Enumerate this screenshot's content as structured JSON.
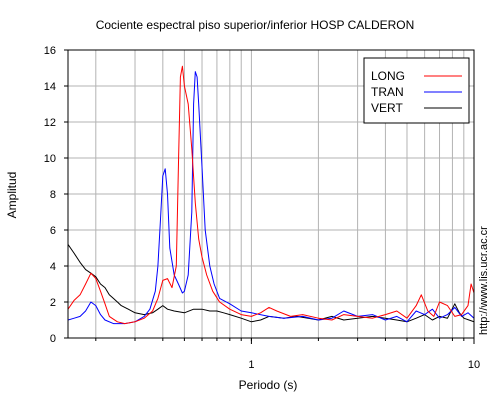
{
  "chart_data": {
    "type": "line",
    "title": "Cociente espectral piso superior/inferior  HOSP CALDERON",
    "xlabel": "Periodo (s)",
    "ylabel": "Amplitud",
    "x_scale": "log",
    "xlim": [
      0.15,
      10
    ],
    "ylim": [
      0,
      16
    ],
    "x_ticks": [
      {
        "value": 1,
        "label": "1"
      },
      {
        "value": 10,
        "label": "10"
      }
    ],
    "y_ticks": [
      0,
      2,
      4,
      6,
      8,
      10,
      12,
      14,
      16
    ],
    "grid": true,
    "legend_position": "top-right",
    "watermark": "http://www.lis.ucr.ac.cr",
    "series": [
      {
        "name": "LONG",
        "color": "#ff0000",
        "points": [
          [
            0.15,
            1.6
          ],
          [
            0.16,
            2.1
          ],
          [
            0.17,
            2.4
          ],
          [
            0.18,
            3.0
          ],
          [
            0.19,
            3.6
          ],
          [
            0.2,
            3.3
          ],
          [
            0.21,
            2.6
          ],
          [
            0.22,
            1.9
          ],
          [
            0.23,
            1.2
          ],
          [
            0.25,
            0.9
          ],
          [
            0.27,
            0.8
          ],
          [
            0.3,
            0.9
          ],
          [
            0.33,
            1.1
          ],
          [
            0.36,
            1.5
          ],
          [
            0.38,
            2.2
          ],
          [
            0.4,
            3.2
          ],
          [
            0.42,
            3.3
          ],
          [
            0.44,
            2.8
          ],
          [
            0.46,
            4.0
          ],
          [
            0.47,
            9.5
          ],
          [
            0.48,
            14.5
          ],
          [
            0.49,
            15.1
          ],
          [
            0.5,
            14.0
          ],
          [
            0.52,
            13.0
          ],
          [
            0.54,
            10.5
          ],
          [
            0.56,
            7.5
          ],
          [
            0.58,
            5.5
          ],
          [
            0.6,
            4.5
          ],
          [
            0.63,
            3.5
          ],
          [
            0.67,
            2.6
          ],
          [
            0.72,
            2.0
          ],
          [
            0.8,
            1.6
          ],
          [
            0.9,
            1.3
          ],
          [
            1.0,
            1.2
          ],
          [
            1.1,
            1.4
          ],
          [
            1.2,
            1.7
          ],
          [
            1.3,
            1.5
          ],
          [
            1.5,
            1.2
          ],
          [
            1.7,
            1.3
          ],
          [
            2.0,
            1.1
          ],
          [
            2.3,
            1.0
          ],
          [
            2.6,
            1.3
          ],
          [
            3.0,
            1.2
          ],
          [
            3.5,
            1.1
          ],
          [
            4.0,
            1.3
          ],
          [
            4.5,
            1.5
          ],
          [
            5.0,
            1.1
          ],
          [
            5.5,
            1.8
          ],
          [
            5.8,
            2.4
          ],
          [
            6.2,
            1.5
          ],
          [
            6.6,
            1.2
          ],
          [
            7.0,
            2.0
          ],
          [
            7.6,
            1.8
          ],
          [
            8.2,
            1.2
          ],
          [
            8.8,
            1.3
          ],
          [
            9.4,
            1.8
          ],
          [
            9.7,
            3.0
          ],
          [
            10.0,
            2.5
          ]
        ]
      },
      {
        "name": "TRAN",
        "color": "#0000ff",
        "points": [
          [
            0.15,
            1.0
          ],
          [
            0.16,
            1.1
          ],
          [
            0.17,
            1.2
          ],
          [
            0.18,
            1.5
          ],
          [
            0.19,
            2.0
          ],
          [
            0.2,
            1.8
          ],
          [
            0.21,
            1.3
          ],
          [
            0.22,
            1.0
          ],
          [
            0.24,
            0.8
          ],
          [
            0.27,
            0.8
          ],
          [
            0.3,
            0.9
          ],
          [
            0.33,
            1.2
          ],
          [
            0.35,
            1.6
          ],
          [
            0.37,
            2.6
          ],
          [
            0.38,
            4.0
          ],
          [
            0.39,
            6.5
          ],
          [
            0.4,
            9.0
          ],
          [
            0.41,
            9.4
          ],
          [
            0.42,
            8.0
          ],
          [
            0.43,
            5.0
          ],
          [
            0.45,
            3.5
          ],
          [
            0.47,
            3.0
          ],
          [
            0.49,
            2.5
          ],
          [
            0.5,
            2.6
          ],
          [
            0.52,
            3.5
          ],
          [
            0.54,
            7.0
          ],
          [
            0.55,
            13.0
          ],
          [
            0.56,
            14.8
          ],
          [
            0.57,
            14.5
          ],
          [
            0.58,
            13.0
          ],
          [
            0.6,
            9.5
          ],
          [
            0.62,
            6.0
          ],
          [
            0.65,
            4.0
          ],
          [
            0.68,
            3.0
          ],
          [
            0.72,
            2.2
          ],
          [
            0.8,
            1.9
          ],
          [
            0.9,
            1.5
          ],
          [
            1.0,
            1.4
          ],
          [
            1.2,
            1.2
          ],
          [
            1.4,
            1.1
          ],
          [
            1.7,
            1.2
          ],
          [
            2.0,
            1.0
          ],
          [
            2.3,
            1.1
          ],
          [
            2.6,
            1.5
          ],
          [
            3.0,
            1.2
          ],
          [
            3.5,
            1.3
          ],
          [
            4.0,
            1.0
          ],
          [
            4.5,
            1.2
          ],
          [
            5.0,
            0.9
          ],
          [
            5.5,
            1.5
          ],
          [
            6.0,
            1.3
          ],
          [
            6.5,
            1.6
          ],
          [
            7.0,
            1.1
          ],
          [
            7.6,
            1.3
          ],
          [
            8.2,
            1.7
          ],
          [
            8.8,
            1.2
          ],
          [
            9.4,
            1.4
          ],
          [
            10.0,
            1.1
          ]
        ]
      },
      {
        "name": "VERT",
        "color": "#000000",
        "points": [
          [
            0.15,
            5.2
          ],
          [
            0.16,
            4.7
          ],
          [
            0.17,
            4.2
          ],
          [
            0.18,
            3.8
          ],
          [
            0.19,
            3.6
          ],
          [
            0.2,
            3.4
          ],
          [
            0.21,
            3.0
          ],
          [
            0.22,
            2.8
          ],
          [
            0.23,
            2.4
          ],
          [
            0.24,
            2.2
          ],
          [
            0.25,
            2.0
          ],
          [
            0.26,
            1.8
          ],
          [
            0.28,
            1.6
          ],
          [
            0.3,
            1.4
          ],
          [
            0.33,
            1.3
          ],
          [
            0.36,
            1.4
          ],
          [
            0.38,
            1.6
          ],
          [
            0.4,
            1.8
          ],
          [
            0.42,
            1.6
          ],
          [
            0.45,
            1.5
          ],
          [
            0.5,
            1.4
          ],
          [
            0.55,
            1.6
          ],
          [
            0.6,
            1.6
          ],
          [
            0.65,
            1.5
          ],
          [
            0.7,
            1.5
          ],
          [
            0.75,
            1.4
          ],
          [
            0.8,
            1.3
          ],
          [
            0.9,
            1.1
          ],
          [
            1.0,
            0.9
          ],
          [
            1.1,
            1.0
          ],
          [
            1.2,
            1.2
          ],
          [
            1.4,
            1.1
          ],
          [
            1.6,
            1.2
          ],
          [
            1.8,
            1.1
          ],
          [
            2.0,
            1.0
          ],
          [
            2.3,
            1.2
          ],
          [
            2.6,
            1.0
          ],
          [
            3.0,
            1.1
          ],
          [
            3.5,
            1.2
          ],
          [
            4.0,
            1.1
          ],
          [
            4.5,
            1.0
          ],
          [
            5.0,
            0.9
          ],
          [
            5.5,
            1.1
          ],
          [
            6.0,
            1.3
          ],
          [
            6.5,
            1.0
          ],
          [
            7.0,
            1.2
          ],
          [
            7.6,
            1.1
          ],
          [
            8.2,
            1.9
          ],
          [
            8.6,
            1.4
          ],
          [
            9.0,
            1.1
          ],
          [
            9.5,
            1.0
          ],
          [
            10.0,
            0.9
          ]
        ]
      }
    ]
  }
}
